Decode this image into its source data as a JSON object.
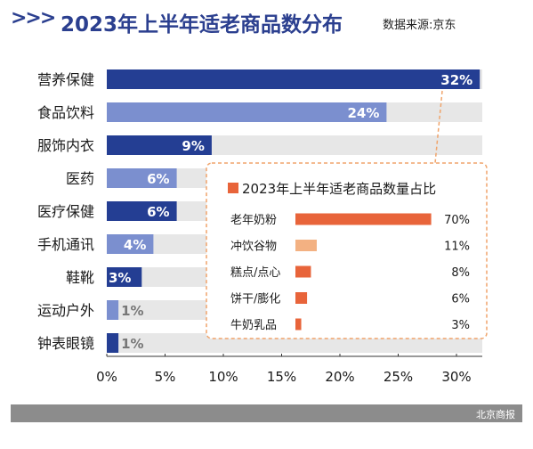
{
  "header": {
    "chevrons": ">>>",
    "title": "2023年上半年适老商品数分布",
    "source": "数据来源:京东"
  },
  "footer": {
    "credit": "北京商报"
  },
  "colors": {
    "dark_bar": "#243e93",
    "light_bar": "#7b8fcf",
    "track": "#e7e7e7",
    "inset_bar": "#e8643a",
    "inset_bar_light": "#f3b182",
    "inset_border": "#f0a46b",
    "footer": "#8c8c8c"
  },
  "chart_data": [
    {
      "type": "bar",
      "orientation": "horizontal",
      "title": "2023年上半年适老商品数分布",
      "categories": [
        "营养保健",
        "食品饮料",
        "服饰内衣",
        "医药",
        "医疗保健",
        "手机通讯",
        "鞋靴",
        "运动户外",
        "钟表眼镜"
      ],
      "values": [
        32,
        24,
        9,
        6,
        6,
        4,
        3,
        1,
        1
      ],
      "value_labels": [
        "32%",
        "24%",
        "9%",
        "6%",
        "6%",
        "4%",
        "3%",
        "1%",
        "1%"
      ],
      "bar_shades": [
        "dark",
        "light",
        "dark",
        "light",
        "dark",
        "light",
        "dark",
        "light",
        "dark"
      ],
      "xlim": [
        0,
        32
      ],
      "xticks": [
        0,
        5,
        10,
        15,
        20,
        25,
        30
      ],
      "xtick_labels": [
        "0%",
        "5%",
        "10%",
        "15%",
        "20%",
        "25%",
        "30%"
      ],
      "grid": false
    },
    {
      "type": "bar",
      "orientation": "horizontal",
      "title": "2023年上半年适老商品数量占比",
      "categories": [
        "老年奶粉",
        "冲饮谷物",
        "糕点/点心",
        "饼干/膨化",
        "牛奶乳品"
      ],
      "values": [
        70,
        11,
        8,
        6,
        3
      ],
      "value_labels": [
        "70%",
        "11%",
        "8%",
        "6%",
        "3%"
      ],
      "bar_shades": [
        "dark",
        "light",
        "dark",
        "dark",
        "dark"
      ]
    }
  ]
}
